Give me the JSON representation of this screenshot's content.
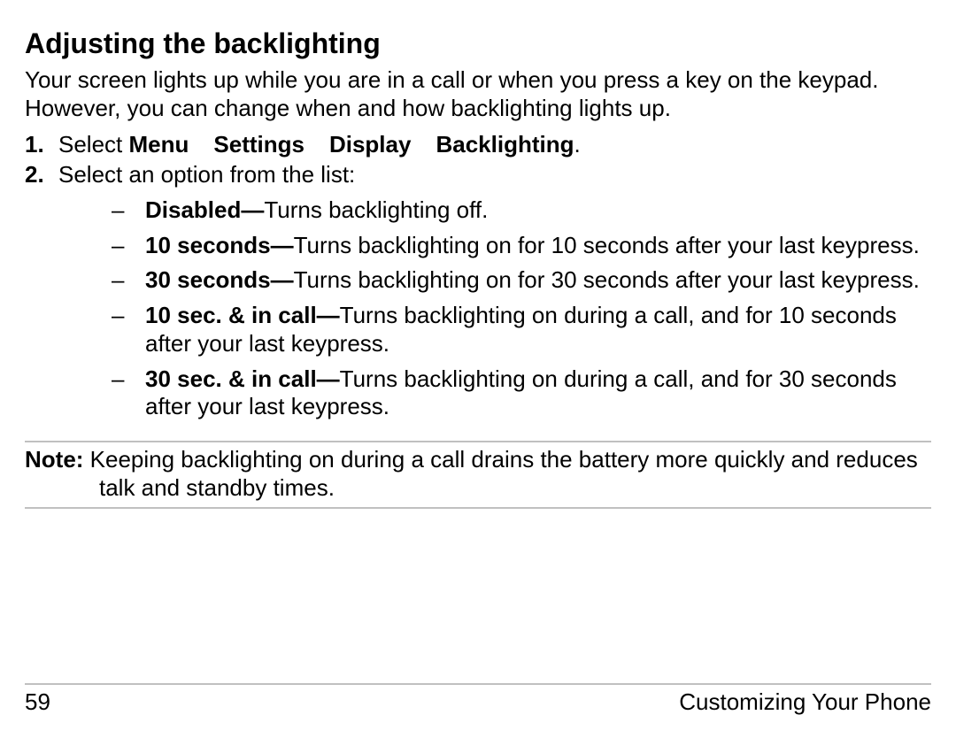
{
  "heading": "Adjusting the backlighting",
  "intro": "Your screen lights up while you are in a call or when you press a key on the keypad. However, you can change when and how backlighting lights up.",
  "steps": {
    "s1": {
      "num": "1.",
      "prefix": "Select ",
      "m1": "Menu",
      "m2": "Settings",
      "m3": "Display",
      "m4": "Backlighting",
      "suffix": "."
    },
    "s2": {
      "num": "2.",
      "text": "Select an option from the list:"
    }
  },
  "options": {
    "o1": {
      "term": "Disabled—",
      "desc": "Turns backlighting off."
    },
    "o2": {
      "term": "10 seconds—",
      "desc": "Turns backlighting on for 10 seconds after your last keypress."
    },
    "o3": {
      "term": "30 seconds—",
      "desc": "Turns backlighting on for 30 seconds after your last keypress."
    },
    "o4": {
      "term": "10 sec. & in call—",
      "desc": "Turns backlighting on during a call, and for 10 seconds after your last keypress."
    },
    "o5": {
      "term": "30 sec. & in call—",
      "desc": "Turns backlighting on during a call, and for 30 seconds after your last keypress."
    }
  },
  "note": {
    "label": "Note:",
    "text": " Keeping backlighting on during a call drains the battery more quickly and reduces talk and standby times."
  },
  "footer": {
    "page": "59",
    "chapter": "Customizing Your Phone"
  },
  "dash": "–"
}
